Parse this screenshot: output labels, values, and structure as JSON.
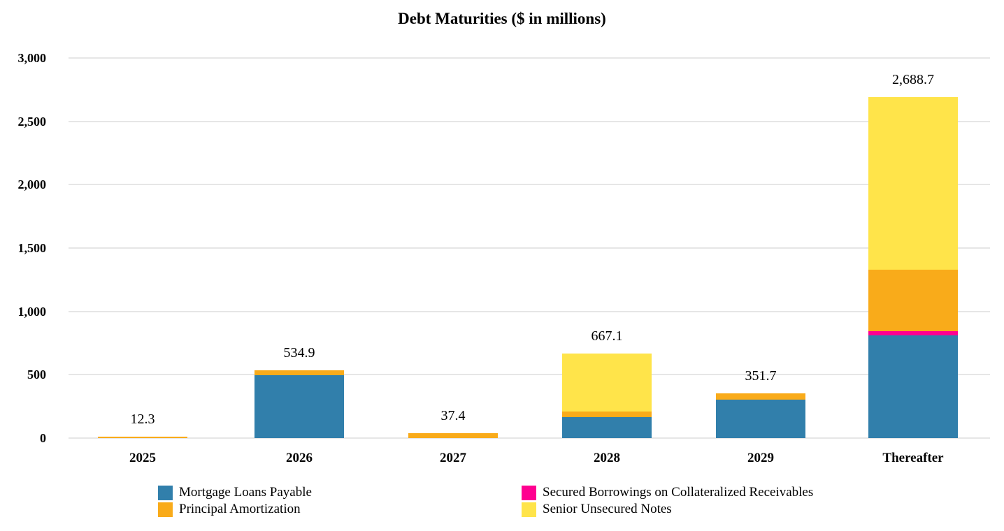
{
  "chart_data": {
    "type": "bar",
    "stacked": true,
    "title": "Debt Maturities ($ in millions)",
    "xlabel": "",
    "ylabel": "",
    "ylim": [
      0,
      3000
    ],
    "yticks": [
      "0",
      "500",
      "1,000",
      "1,500",
      "2,000",
      "2,500",
      "3,000"
    ],
    "grid": true,
    "legend_position": "bottom",
    "categories": [
      "2025",
      "2026",
      "2027",
      "2028",
      "2029",
      "Thereafter"
    ],
    "series": [
      {
        "name": "Mortgage Loans Payable",
        "color": "#317FAB",
        "values": [
          0,
          496,
          0,
          166,
          303,
          810
        ]
      },
      {
        "name": "Secured Borrowings on Collateralized Receivables",
        "color": "#FF0090",
        "values": [
          0,
          0,
          0,
          0,
          0,
          34
        ]
      },
      {
        "name": "Principal Amortization",
        "color": "#F9AB1A",
        "values": [
          12.3,
          38.9,
          37.4,
          44,
          48.7,
          485
        ]
      },
      {
        "name": "Senior Unsecured Notes",
        "color": "#FFE44A",
        "values": [
          0,
          0,
          0,
          457.1,
          0,
          1359.7
        ]
      }
    ],
    "totals": [
      "12.3",
      "534.9",
      "37.4",
      "667.1",
      "351.7",
      "2,688.7"
    ],
    "total_values": [
      12.3,
      534.9,
      37.4,
      667.1,
      351.7,
      2688.7
    ]
  },
  "legend": [
    {
      "label": "Mortgage Loans Payable",
      "color": "#317FAB"
    },
    {
      "label": "Principal Amortization",
      "color": "#F9AB1A"
    },
    {
      "label": "Secured Borrowings on Collateralized Receivables",
      "color": "#FF0090"
    },
    {
      "label": "Senior Unsecured Notes",
      "color": "#FFE44A"
    }
  ]
}
